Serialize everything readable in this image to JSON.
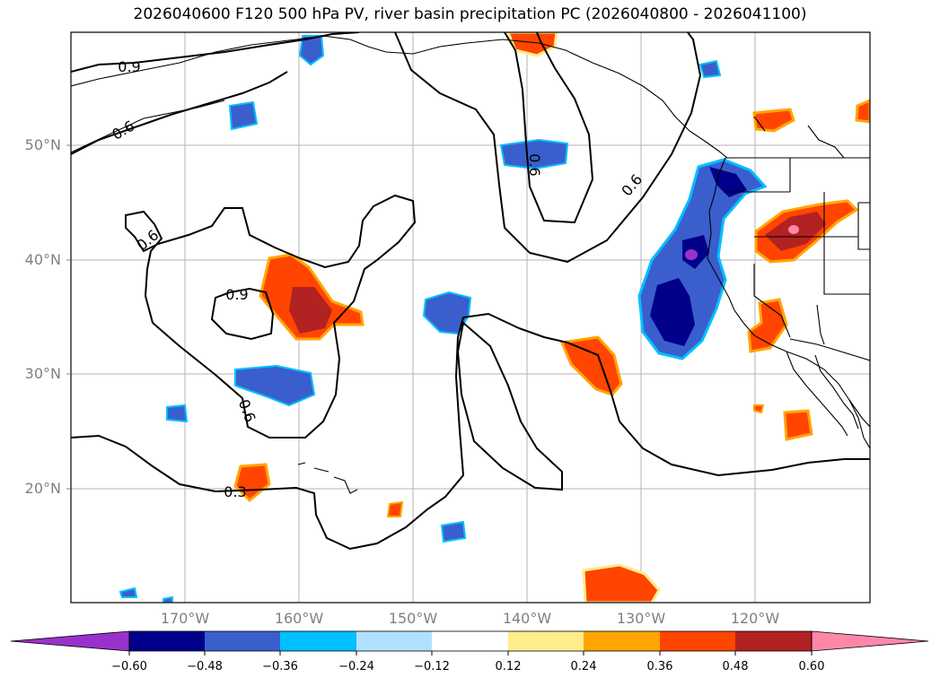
{
  "title": "2026040600 F120 500 hPa PV, river basin precipitation PC (2026040800 - 2026041100)",
  "map": {
    "lat_labels": [
      "50°N",
      "40°N",
      "30°N",
      "20°N"
    ],
    "lon_labels": [
      "170°W",
      "160°W",
      "150°W",
      "140°W",
      "130°W",
      "120°W"
    ],
    "contour_labels": [
      "0.9",
      "0.6",
      "0.6",
      "0.9",
      "0.6",
      "0.6",
      "0.3",
      "0.6"
    ]
  },
  "colorbar": {
    "colors": [
      "#9932cc",
      "#00008b",
      "#3a5fcd",
      "#00bfff",
      "#b0e2ff",
      "#ffffff",
      "#ffec8b",
      "#ffa500",
      "#ff4500",
      "#b22222",
      "#ff88aa"
    ],
    "tick_labels": [
      "−0.60",
      "−0.48",
      "−0.36",
      "−0.24",
      "−0.12",
      "0.12",
      "0.24",
      "0.36",
      "0.48",
      "0.60"
    ],
    "values": [
      -0.6,
      -0.48,
      -0.36,
      -0.24,
      -0.12,
      0.12,
      0.24,
      0.36,
      0.48,
      0.6
    ]
  }
}
